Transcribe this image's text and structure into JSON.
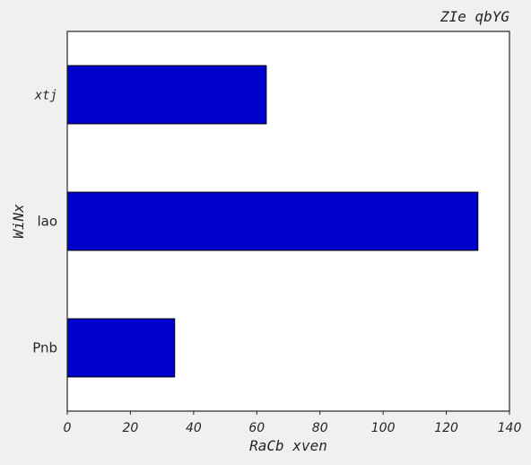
{
  "chart_data": {
    "type": "bar",
    "orientation": "horizontal",
    "title": "ZIe qbYG",
    "xlabel": "RaCb xven",
    "ylabel": "WiNx",
    "categories": [
      "Pnb",
      "lao",
      "xtj"
    ],
    "values": [
      34,
      130,
      63
    ],
    "xlim": [
      0,
      140
    ],
    "xticks": [
      "0",
      "20",
      "40",
      "60",
      "80",
      "100",
      "120",
      "140"
    ],
    "grid": false,
    "bar_color": "#0000cd",
    "bar_edge_color": "#000000"
  }
}
